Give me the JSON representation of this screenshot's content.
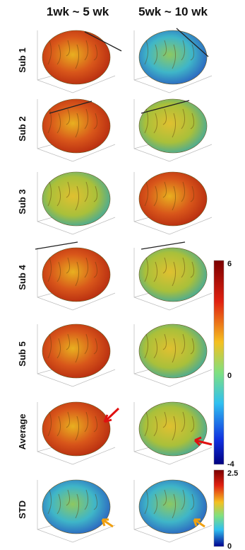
{
  "header": {
    "columns": [
      "1wk ~ 5 wk",
      "5wk ~ 10 wk"
    ]
  },
  "rows": [
    "Sub 1",
    "Sub 2",
    "Sub 3",
    "Sub 4",
    "Sub 5",
    "Average",
    "STD"
  ],
  "colorbars": [
    {
      "labels": [
        "6",
        "0",
        "-4"
      ]
    },
    {
      "labels": [
        "2.5",
        "0"
      ]
    }
  ]
}
